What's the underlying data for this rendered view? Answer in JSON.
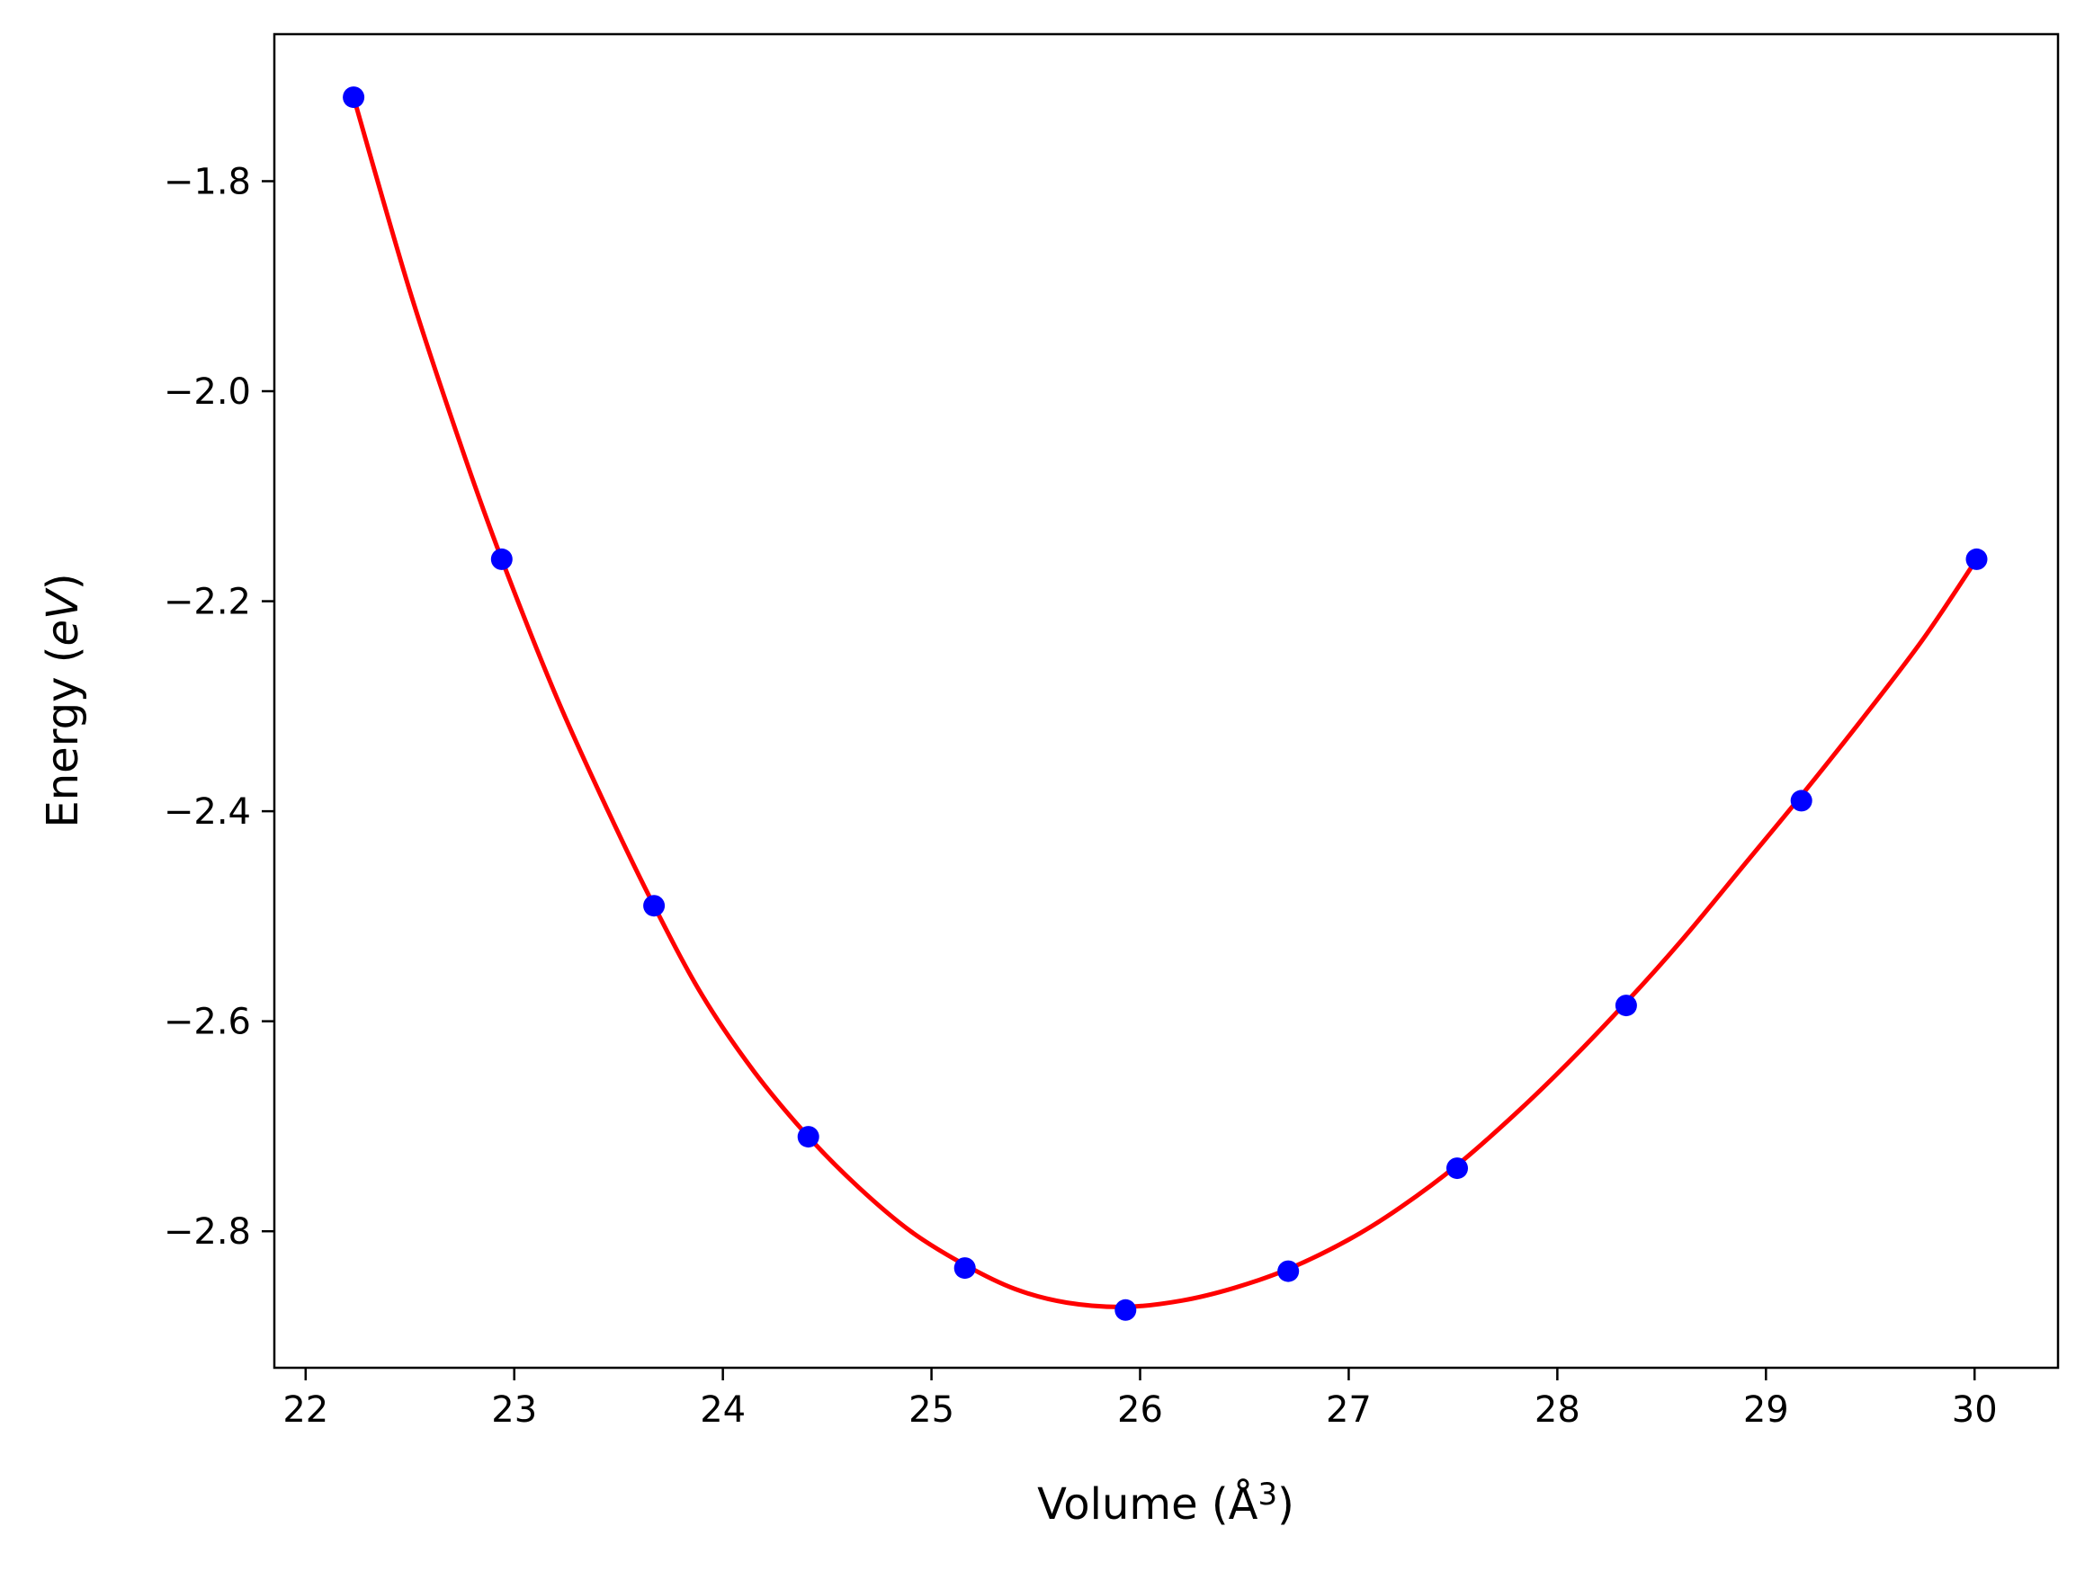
{
  "chart_data": {
    "type": "scatter",
    "title": "",
    "xlabel": "Volume (Å",
    "xlabel_sup": "3",
    "xlabel_close": ")",
    "ylabel": "Energy (",
    "ylabel_unit": "eV",
    "ylabel_close": ")",
    "xlim": [
      21.85,
      30.4
    ],
    "ylim": [
      -2.93,
      -1.66
    ],
    "x_ticks": [
      22,
      23,
      24,
      25,
      26,
      27,
      28,
      29,
      30
    ],
    "x_tick_labels": [
      "22",
      "23",
      "24",
      "25",
      "26",
      "27",
      "28",
      "29",
      "30"
    ],
    "y_ticks": [
      -1.8,
      -2.0,
      -2.2,
      -2.4,
      -2.6,
      -2.8
    ],
    "y_tick_labels": [
      "−1.8",
      "−2.0",
      "−2.2",
      "−2.4",
      "−2.6",
      "−2.8"
    ],
    "grid": false,
    "legend": "none",
    "series": [
      {
        "kind": "points",
        "color": "#0000ff",
        "x": [
          22.23,
          22.94,
          23.67,
          24.41,
          25.16,
          25.93,
          26.71,
          27.52,
          28.33,
          29.17,
          30.01
        ],
        "y": [
          -1.72,
          -2.16,
          -2.49,
          -2.71,
          -2.835,
          -2.875,
          -2.838,
          -2.74,
          -2.585,
          -2.39,
          -2.16
        ]
      },
      {
        "kind": "fit-curve",
        "color": "#ff0000",
        "x": [
          22.23,
          22.5,
          22.75,
          22.94,
          23.2,
          23.45,
          23.67,
          23.9,
          24.15,
          24.41,
          24.65,
          24.9,
          25.16,
          25.4,
          25.65,
          25.93,
          26.2,
          26.45,
          26.71,
          27.0,
          27.25,
          27.52,
          27.8,
          28.05,
          28.33,
          28.6,
          28.9,
          29.17,
          29.45,
          29.75,
          30.01
        ],
        "y": [
          -1.72,
          -1.905,
          -2.055,
          -2.16,
          -2.29,
          -2.4,
          -2.49,
          -2.575,
          -2.648,
          -2.71,
          -2.758,
          -2.8,
          -2.832,
          -2.855,
          -2.868,
          -2.872,
          -2.866,
          -2.854,
          -2.836,
          -2.808,
          -2.777,
          -2.737,
          -2.688,
          -2.64,
          -2.582,
          -2.522,
          -2.45,
          -2.385,
          -2.315,
          -2.237,
          -2.16
        ]
      }
    ]
  }
}
